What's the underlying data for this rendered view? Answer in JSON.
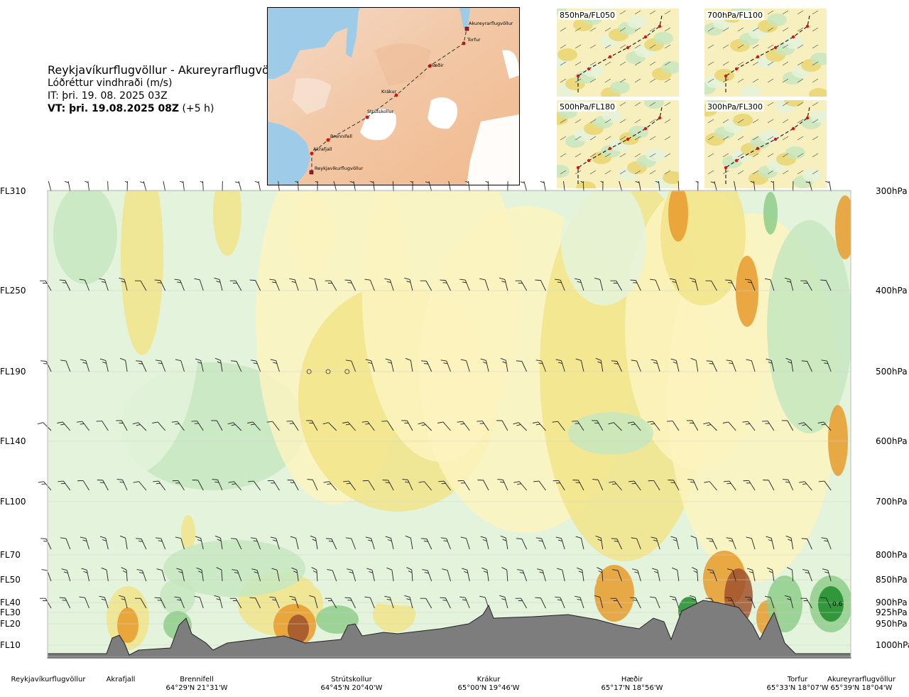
{
  "header": {
    "route": "Reykjavíkurflugvöllur - Akureyrarflugvöllur",
    "variable": "Lóðréttur vindhraði (m/s)",
    "it": "IT: þri. 19. 08. 2025 03Z",
    "vt_bold": "VT: þri. 19.08.2025 08Z",
    "vt_suffix": " (+5 h)"
  },
  "map": {
    "waypoints": [
      "Akureyrarflugvöllur",
      "Torfur",
      "Hæðir",
      "Krákur",
      "Strútskollur",
      "Brennifell",
      "Akrafjall",
      "Reykjavíkurflugvöllur"
    ]
  },
  "mini_maps": [
    {
      "label": "850hPa/FL050"
    },
    {
      "label": "700hPa/FL100"
    },
    {
      "label": "500hPa/FL180"
    },
    {
      "label": "300hPa/FL300"
    }
  ],
  "chart_data": {
    "type": "heatmap",
    "title": "Reykjavíkurflugvöllur - Akureyrarflugvöllur",
    "subtitle": "Lóðréttur vindhraði (m/s)",
    "levels": [
      {
        "fl": "FL310",
        "hpa": "300hPa"
      },
      {
        "fl": "FL250",
        "hpa": "400hPa"
      },
      {
        "fl": "FL190",
        "hpa": "500hPa"
      },
      {
        "fl": "FL140",
        "hpa": "600hPa"
      },
      {
        "fl": "FL100",
        "hpa": "700hPa"
      },
      {
        "fl": "FL70",
        "hpa": "800hPa"
      },
      {
        "fl": "FL50",
        "hpa": "850hPa"
      },
      {
        "fl": "FL40",
        "hpa": "900hPa"
      },
      {
        "fl": "FL30",
        "hpa": "925hPa"
      },
      {
        "fl": "FL20",
        "hpa": "950hPa"
      },
      {
        "fl": "FL10",
        "hpa": "1000hPa"
      }
    ],
    "locations": [
      {
        "name": "Reykjavíkurflugvöllur",
        "coord": ""
      },
      {
        "name": "Akrafjall",
        "coord": ""
      },
      {
        "name": "Brennifell",
        "coord": "64°29'N 21°31'W"
      },
      {
        "name": "Strútskollur",
        "coord": "64°45'N 20°40'W"
      },
      {
        "name": "Krákur",
        "coord": "65°00'N 19°46'W"
      },
      {
        "name": "Hæðir",
        "coord": "65°17'N 18°56'W"
      },
      {
        "name": "Torfur",
        "coord": "65°33'N 18°07'W"
      },
      {
        "name": "Akureyrarflugvöllur",
        "coord": "65°39'N 18°04'W"
      }
    ],
    "annotations": [
      "0.6"
    ],
    "colors": {
      "strong_down": "#a0522d",
      "moderate_down": "#e89a2c",
      "weak_down": "#f2e48a",
      "near_zero_down": "#fbf3c0",
      "neutral": "#fffde6",
      "near_zero_up": "#e4f3dc",
      "weak_up": "#c6e6bf",
      "moderate_up": "#8fcc8a",
      "strong_up": "#1e8c2a",
      "terrain": "#7d7d7d"
    }
  }
}
